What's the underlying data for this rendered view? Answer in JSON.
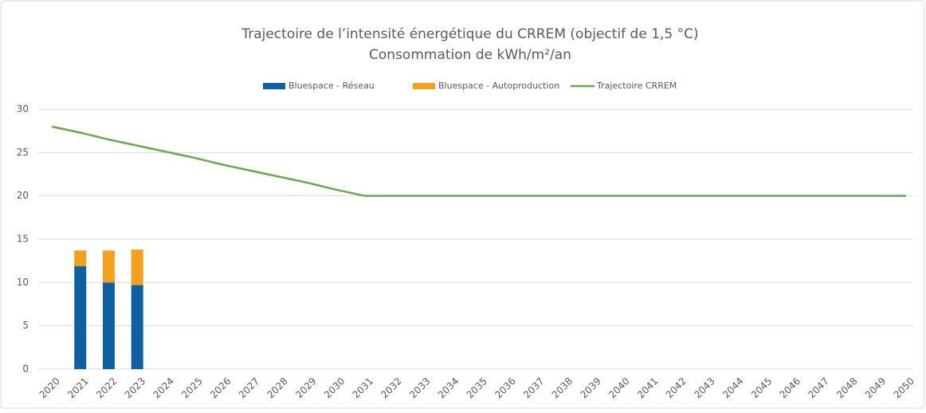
{
  "chart_data": {
    "type": "bar_line",
    "title": "Trajectoire de l’intensité énergétique du CRREM (objectif de 1,5 °C)",
    "subtitle": "Consommation de kWh/m²/an",
    "categories": [
      "2020",
      "2021",
      "2022",
      "2023",
      "2024",
      "2025",
      "2026",
      "2027",
      "2028",
      "2029",
      "2030",
      "2031",
      "2032",
      "2033",
      "2034",
      "2035",
      "2036",
      "2037",
      "2038",
      "2039",
      "2040",
      "2041",
      "2042",
      "2043",
      "2044",
      "2045",
      "2046",
      "2047",
      "2048",
      "2049",
      "2050"
    ],
    "series": [
      {
        "name": "Bluespace - Réseau",
        "type": "bar",
        "color": "#0f5fa3",
        "values": [
          null,
          11.9,
          10.0,
          9.7,
          null,
          null,
          null,
          null,
          null,
          null,
          null,
          null,
          null,
          null,
          null,
          null,
          null,
          null,
          null,
          null,
          null,
          null,
          null,
          null,
          null,
          null,
          null,
          null,
          null,
          null,
          null
        ]
      },
      {
        "name": "Bluespace - Autoproduction",
        "type": "bar",
        "color": "#f5a01c",
        "values": [
          null,
          1.8,
          3.7,
          4.1,
          null,
          null,
          null,
          null,
          null,
          null,
          null,
          null,
          null,
          null,
          null,
          null,
          null,
          null,
          null,
          null,
          null,
          null,
          null,
          null,
          null,
          null,
          null,
          null,
          null,
          null,
          null
        ]
      },
      {
        "name": "Trajectoire CRREM",
        "type": "line",
        "color": "#6aa84f",
        "values": [
          28,
          27.3,
          26.5,
          25.8,
          25.1,
          24.4,
          23.6,
          22.9,
          22.2,
          21.5,
          20.7,
          20,
          20,
          20,
          20,
          20,
          20,
          20,
          20,
          20,
          20,
          20,
          20,
          20,
          20,
          20,
          20,
          20,
          20,
          20,
          20
        ]
      }
    ],
    "stacked": true,
    "ylim": [
      0,
      30
    ],
    "yticks": [
      0,
      5,
      10,
      15,
      20,
      25,
      30
    ],
    "grid": true,
    "legend": "top"
  }
}
